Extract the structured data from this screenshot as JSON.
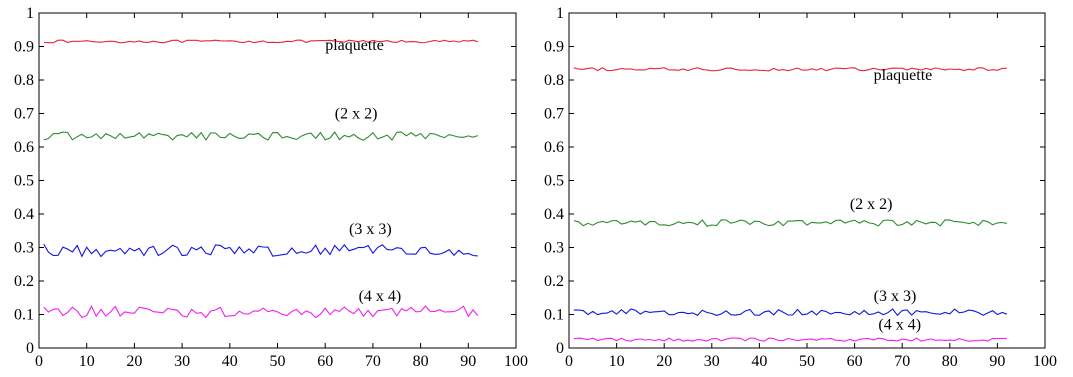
{
  "chart_data": [
    {
      "type": "line",
      "title": "",
      "xlabel": "",
      "ylabel": "",
      "xlim": [
        0,
        100
      ],
      "ylim": [
        0,
        1
      ],
      "xticks": [
        0,
        10,
        20,
        30,
        40,
        50,
        60,
        70,
        80,
        90,
        100
      ],
      "yticks": [
        0,
        0.1,
        0.2,
        0.3,
        0.4,
        0.5,
        0.6,
        0.7,
        0.8,
        0.9,
        1
      ],
      "ytick_labels": [
        "0",
        "0.1",
        "0.2",
        "0.3",
        "0.4",
        "0.5",
        "0.6",
        "0.7",
        "0.8",
        "0.9",
        "1"
      ],
      "grid": false,
      "series": [
        {
          "name": "plaquette",
          "color": "#e8243c",
          "x_start": 1,
          "x_end": 92,
          "mean": 0.915,
          "noise": 0.0025,
          "label_x": 60,
          "label_y": 0.89
        },
        {
          "name": "(2 x 2)",
          "color": "#2e8b2e",
          "x_start": 1,
          "x_end": 92,
          "mean": 0.633,
          "noise": 0.008,
          "label_x": 62,
          "label_y": 0.685
        },
        {
          "name": "(3 x 3)",
          "color": "#1414e0",
          "x_start": 1,
          "x_end": 92,
          "mean": 0.292,
          "noise": 0.012,
          "label_x": 65,
          "label_y": 0.34
        },
        {
          "name": "(4 x 4)",
          "color": "#ee22ee",
          "x_start": 1,
          "x_end": 92,
          "mean": 0.108,
          "noise": 0.011,
          "label_x": 67,
          "label_y": 0.14
        }
      ]
    },
    {
      "type": "line",
      "title": "",
      "xlabel": "",
      "ylabel": "",
      "xlim": [
        0,
        100
      ],
      "ylim": [
        0,
        1
      ],
      "xticks": [
        0,
        10,
        20,
        30,
        40,
        50,
        60,
        70,
        80,
        90,
        100
      ],
      "yticks": [
        0,
        0.1,
        0.2,
        0.3,
        0.4,
        0.5,
        0.6,
        0.7,
        0.8,
        0.9,
        1
      ],
      "ytick_labels": [
        "0",
        "0.1",
        "0.2",
        "0.3",
        "0.4",
        "0.5",
        "0.6",
        "0.7",
        "0.8",
        "0.9",
        "1"
      ],
      "grid": false,
      "series": [
        {
          "name": "plaquette",
          "color": "#e8243c",
          "x_start": 1,
          "x_end": 92,
          "mean": 0.832,
          "noise": 0.003,
          "label_x": 64,
          "label_y": 0.8
        },
        {
          "name": "(2 x 2)",
          "color": "#2e8b2e",
          "x_start": 1,
          "x_end": 92,
          "mean": 0.373,
          "noise": 0.006,
          "label_x": 59,
          "label_y": 0.415
        },
        {
          "name": "(3 x 3)",
          "color": "#1414e0",
          "x_start": 1,
          "x_end": 92,
          "mean": 0.107,
          "noise": 0.006,
          "label_x": 64,
          "label_y": 0.14
        },
        {
          "name": "(4 x 4)",
          "color": "#ee22ee",
          "x_start": 1,
          "x_end": 92,
          "mean": 0.025,
          "noise": 0.003,
          "label_x": 65,
          "label_y": 0.055
        }
      ]
    }
  ]
}
